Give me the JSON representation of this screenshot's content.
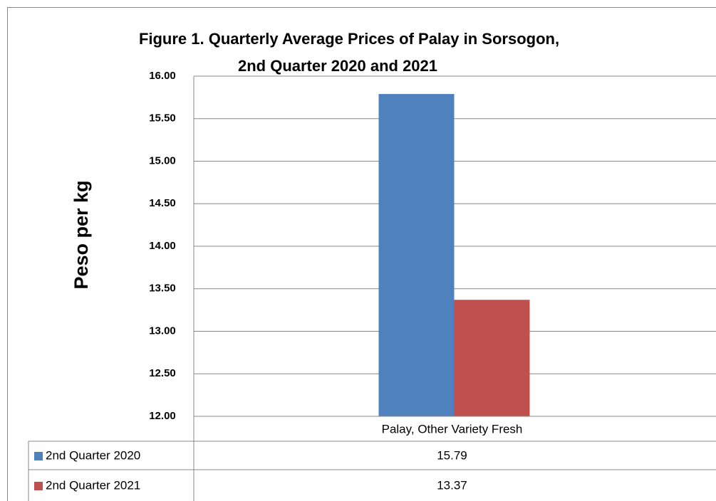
{
  "chart_data": {
    "type": "bar",
    "title": [
      "Figure 1.  Quarterly Average Prices of Palay in Sorsogon,",
      "2nd Quarter 2020 and 2021"
    ],
    "y_label": "Peso per kg",
    "categories": [
      "Palay, Other Variety Fresh"
    ],
    "series": [
      {
        "name": "2nd Quarter 2020",
        "color": "#4f81bd",
        "values": [
          15.79
        ]
      },
      {
        "name": "2nd Quarter 2021",
        "color": "#c0504d",
        "values": [
          13.37
        ]
      }
    ],
    "ylim": [
      12,
      16
    ],
    "yticks": [
      {
        "value": 12,
        "label": "12.00"
      },
      {
        "value": 12.5,
        "label": "12.50"
      },
      {
        "value": 13,
        "label": "13.00"
      },
      {
        "value": 13.5,
        "label": "13.50"
      },
      {
        "value": 14,
        "label": "14.00"
      },
      {
        "value": 14.5,
        "label": "14.50"
      },
      {
        "value": 15,
        "label": "15.00"
      },
      {
        "value": 15.5,
        "label": "15.50"
      },
      {
        "value": 16,
        "label": "16.00"
      }
    ],
    "grid": true,
    "data_table": true
  }
}
